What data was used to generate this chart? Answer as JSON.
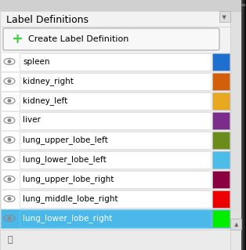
{
  "title": "Label Definitions",
  "button_text": "Create Label Definition",
  "labels": [
    {
      "name": "spleen",
      "color": "#1F6FD0",
      "selected": false
    },
    {
      "name": "kidney_right",
      "color": "#D45F0A",
      "selected": false
    },
    {
      "name": "kidney_left",
      "color": "#E8A820",
      "selected": false
    },
    {
      "name": "liver",
      "color": "#7B2D8B",
      "selected": false
    },
    {
      "name": "lung_upper_lobe_left",
      "color": "#6B8C1A",
      "selected": false
    },
    {
      "name": "lung_lower_lobe_left",
      "color": "#4BBDE8",
      "selected": false
    },
    {
      "name": "lung_upper_lobe_right",
      "color": "#8B0040",
      "selected": false
    },
    {
      "name": "lung_middle_lobe_right",
      "color": "#EE0000",
      "selected": false
    },
    {
      "name": "lung_lower_lobe_right",
      "color": "#00EE00",
      "selected": true
    }
  ],
  "bg_color": "#E8E8E8",
  "panel_bg": "#F2F2F2",
  "selected_bg": "#4AB8E8",
  "row_bg": "#FFFFFF",
  "title_fontsize": 9,
  "label_fontsize": 7.5,
  "button_fontsize": 8
}
